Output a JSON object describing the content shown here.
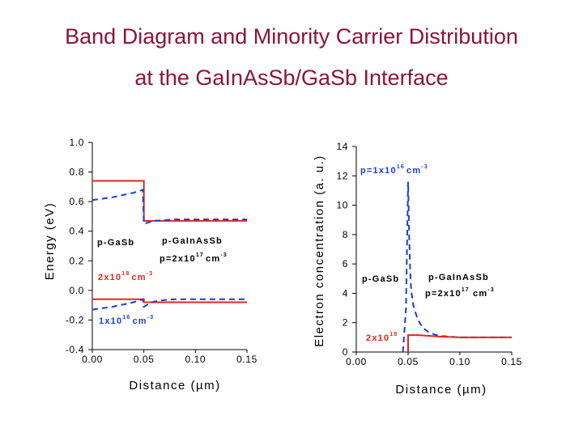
{
  "slide": {
    "title_line1": "Band Diagram and  Minority Carrier Distribution",
    "title_line2": "at the GaInAsSb/GaSb Interface"
  },
  "colors": {
    "title": "#8b1538",
    "red": "#e8231e",
    "blue": "#1a3ec8",
    "axis": "#000000"
  },
  "chart_data": [
    {
      "type": "line",
      "xlabel": "Distance (µm)",
      "ylabel": "Energy (eV)",
      "xlim": [
        0,
        0.15
      ],
      "ylim": [
        -0.4,
        1.0
      ],
      "xticks": [
        "0.00",
        "0.05",
        "0.10",
        "0.15"
      ],
      "yticks": [
        "1.0",
        "0.8",
        "0.6",
        "0.4",
        "0.2",
        "0.0",
        "-0.2",
        "-0.4"
      ],
      "series": [
        {
          "color": "#e8231e",
          "style": "solid",
          "x": [
            0,
            0.05,
            0.05,
            0.15
          ],
          "y": [
            0.74,
            0.74,
            0.47,
            0.47
          ]
        },
        {
          "color": "#e8231e",
          "style": "solid",
          "x": [
            0,
            0.05,
            0.05,
            0.15
          ],
          "y": [
            -0.06,
            -0.06,
            -0.08,
            -0.08
          ]
        },
        {
          "color": "#1a3ec8",
          "style": "dashed",
          "x": [
            0,
            0.02,
            0.04,
            0.049,
            0.05,
            0.055,
            0.06,
            0.07,
            0.08,
            0.1,
            0.15
          ],
          "y": [
            0.61,
            0.63,
            0.66,
            0.68,
            0.45,
            0.46,
            0.47,
            0.475,
            0.48,
            0.48,
            0.48
          ]
        },
        {
          "color": "#1a3ec8",
          "style": "dashed",
          "x": [
            0,
            0.02,
            0.04,
            0.049,
            0.05,
            0.055,
            0.06,
            0.07,
            0.08,
            0.1,
            0.15
          ],
          "y": [
            -0.13,
            -0.11,
            -0.08,
            -0.06,
            -0.11,
            -0.09,
            -0.075,
            -0.065,
            -0.06,
            -0.06,
            -0.06
          ]
        }
      ],
      "annotations": {
        "left_label": "p-GaSb",
        "right_label": "p-GaInAsSb",
        "right_doping": "p=2x10",
        "right_doping_exp": "17",
        "right_doping_unit": "cm",
        "right_doping_unit_exp": "-3",
        "red_doping": "2x10",
        "red_doping_exp": "18",
        "red_doping_unit": "cm",
        "red_doping_unit_exp": "-3",
        "blue_doping": "1x10",
        "blue_doping_exp": "16",
        "blue_doping_unit": "cm",
        "blue_doping_unit_exp": "-3"
      }
    },
    {
      "type": "line",
      "xlabel": "Distance (µm)",
      "ylabel": "Electron concentration (a. u.)",
      "xlim": [
        0,
        0.15
      ],
      "ylim": [
        0,
        14
      ],
      "xticks": [
        "0.00",
        "0.05",
        "0.10",
        "0.15"
      ],
      "yticks": [
        "14",
        "12",
        "10",
        "8",
        "6",
        "4",
        "2",
        "0"
      ],
      "series": [
        {
          "color": "#1a3ec8",
          "style": "dashed",
          "x": [
            0.045,
            0.048,
            0.05,
            0.051,
            0.052,
            0.053,
            0.055,
            0.058,
            0.061,
            0.065,
            0.07,
            0.075,
            0.08,
            0.09,
            0.1,
            0.12,
            0.15
          ],
          "y": [
            0,
            3.0,
            11.6,
            8.0,
            5.5,
            4.2,
            3.2,
            2.5,
            2.0,
            1.6,
            1.35,
            1.2,
            1.1,
            1.05,
            1.0,
            1.0,
            1.0
          ]
        },
        {
          "color": "#e8231e",
          "style": "solid",
          "x": [
            0.05,
            0.05,
            0.06,
            0.08,
            0.1,
            0.12,
            0.15
          ],
          "y": [
            0,
            1.15,
            1.15,
            1.05,
            1.0,
            1.0,
            1.0
          ]
        }
      ],
      "annotations": {
        "blue_doping": "p=1x10",
        "blue_doping_exp": "16",
        "blue_doping_unit": "cm",
        "blue_doping_unit_exp": "-3",
        "left_label": "p-GaSb",
        "right_label": "p-GaInAsSb",
        "right_doping": "p=2x10",
        "right_doping_exp": "17",
        "right_doping_unit": "cm",
        "right_doping_unit_exp": "-3",
        "red_doping": "2x10",
        "red_doping_exp": "18"
      }
    }
  ]
}
